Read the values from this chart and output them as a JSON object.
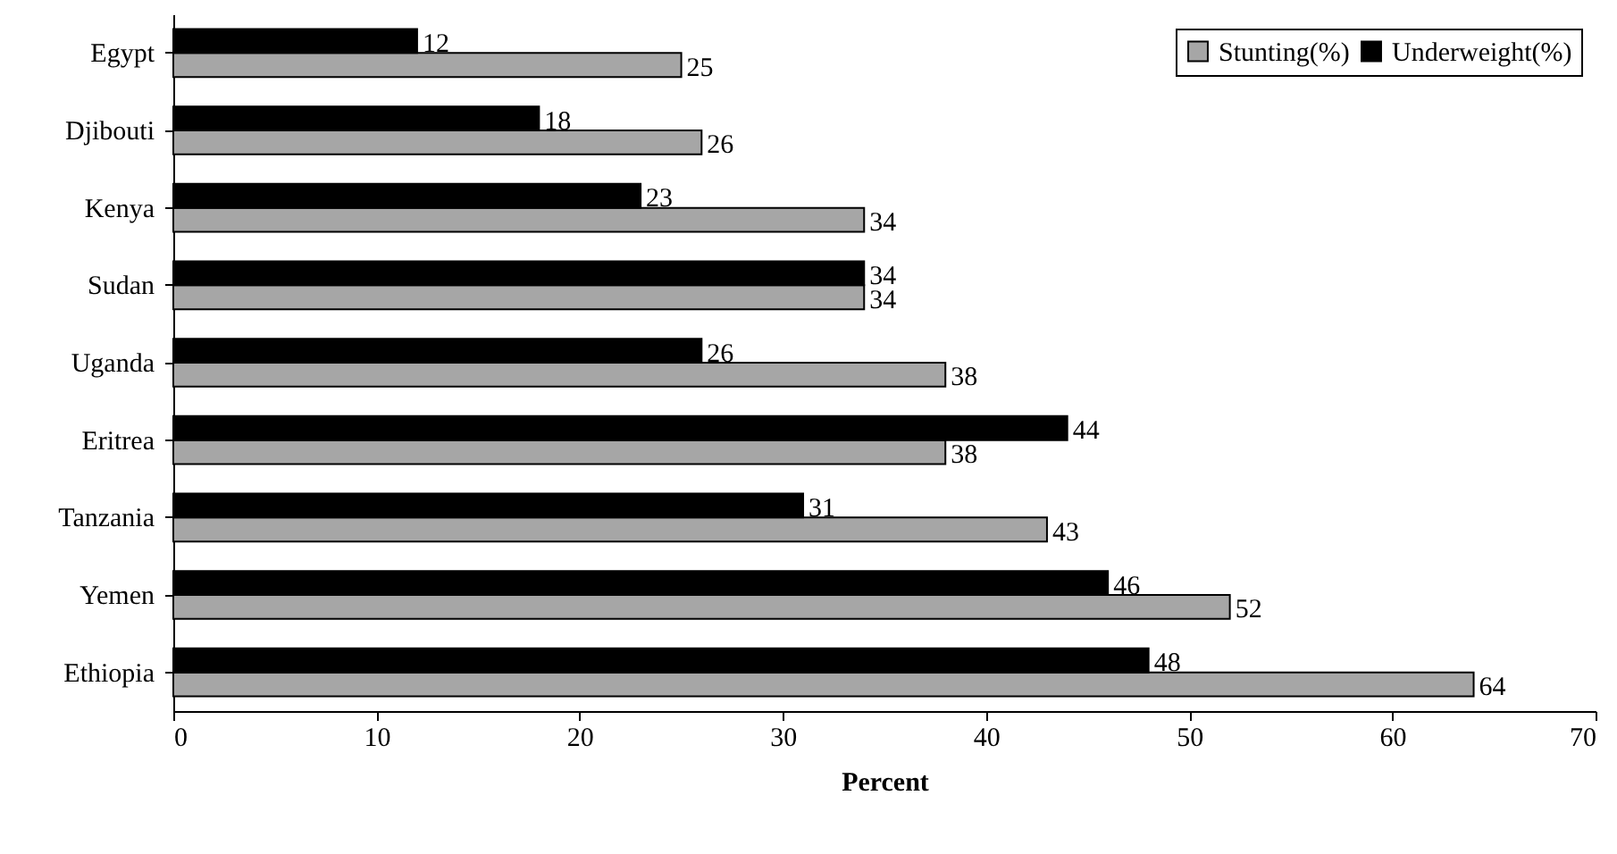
{
  "chart_data": {
    "type": "bar",
    "orientation": "horizontal",
    "xlabel": "Percent",
    "categories": [
      "Egypt",
      "Djibouti",
      "Kenya",
      "Sudan",
      "Uganda",
      "Eritrea",
      "Tanzania",
      "Yemen",
      "Ethiopia"
    ],
    "series": [
      {
        "name": "Stunting(%)",
        "color": "#a6a6a6",
        "values": [
          25,
          26,
          34,
          34,
          38,
          38,
          43,
          52,
          64
        ]
      },
      {
        "name": "Underweight(%)",
        "color": "#000000",
        "values": [
          12,
          18,
          23,
          34,
          26,
          44,
          31,
          46,
          48
        ]
      }
    ],
    "xlim": [
      0,
      70
    ],
    "xticks": [
      0,
      10,
      20,
      30,
      40,
      50,
      60,
      70
    ],
    "data_labels": true,
    "legend": "top right",
    "grid": false
  }
}
